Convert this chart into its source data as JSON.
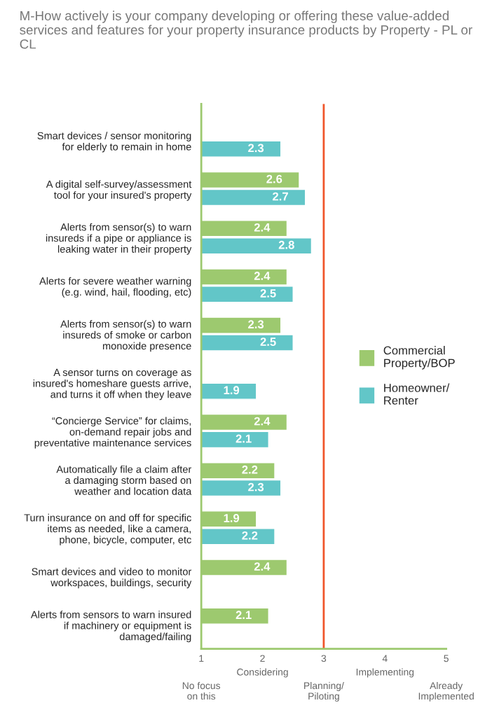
{
  "chart_data": {
    "type": "bar",
    "orientation": "horizontal",
    "title": "M-How actively is your company developing or offering these value-added services and features for your property insurance products by Property - PL or CL",
    "categories": [
      "Smart devices / sensor monitoring\nfor elderly to remain in home",
      "A digital self-survey/assessment\ntool for your insured's property",
      "Alerts from sensor(s) to warn\ninsureds if a pipe or appliance is\nleaking water in their property",
      "Alerts for severe weather warning\n(e.g. wind, hail, flooding, etc)",
      "Alerts from sensor(s) to warn\ninsureds of smoke or carbon\nmonoxide presence",
      "A sensor turns on coverage as\ninsured's homeshare guests arrive,\nand turns it off when they leave",
      "“Concierge Service” for claims,\non-demand repair jobs and\npreventative maintenance services",
      "Automatically file a claim after\na damaging storm based on\nweather and location data",
      "Turn insurance on and off for specific\nitems as needed, like a camera,\nphone, bicycle, computer, etc",
      "Smart devices and video to monitor\nworkspaces, buildings, security",
      "Alerts from sensors to warn insured\nif machinery or equipment is\ndamaged/failing"
    ],
    "series": [
      {
        "name": "Commercial\nProperty/BOP",
        "color": "#9dc96f",
        "values": [
          null,
          2.6,
          2.4,
          2.4,
          2.3,
          null,
          2.4,
          2.2,
          1.9,
          2.4,
          2.1
        ]
      },
      {
        "name": "Homeowner/\nRenter",
        "color": "#62c6c8",
        "values": [
          2.3,
          2.7,
          2.8,
          2.5,
          2.5,
          1.9,
          2.1,
          2.3,
          2.2,
          null,
          null
        ]
      }
    ],
    "xlim": [
      1,
      5
    ],
    "xticks": [
      1,
      2,
      3,
      4,
      5
    ],
    "annotations": [
      "No focus\non this",
      "Considering",
      "Planning/\nPiloting",
      "Implementing",
      "Already\nImplemented"
    ],
    "ref_lines": [
      {
        "axis": "x",
        "value": 3,
        "color": "#f0552a"
      }
    ],
    "data_labels": true,
    "legend": "right",
    "grid": false
  }
}
